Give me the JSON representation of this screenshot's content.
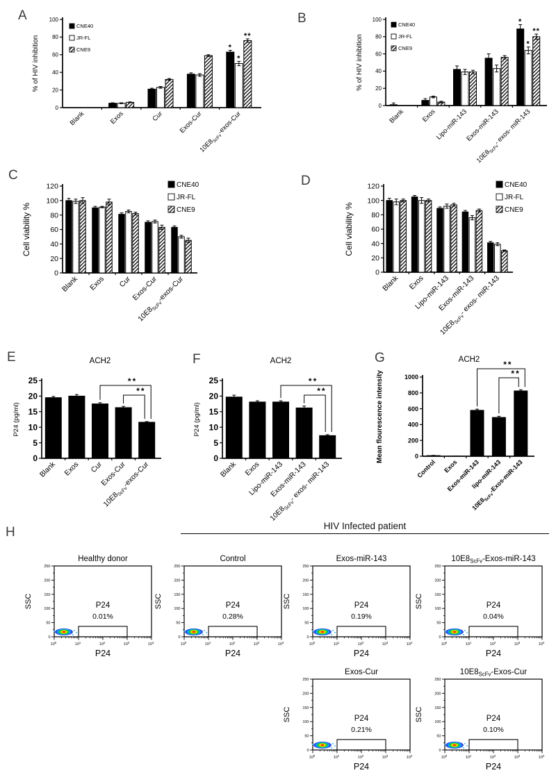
{
  "panel_letters": {
    "A": "A",
    "B": "B",
    "C": "C",
    "D": "D",
    "E": "E",
    "F": "F",
    "G": "G",
    "H": "H"
  },
  "panel_h": {
    "header": "HIV Infected patient"
  },
  "chart_data": [
    {
      "id": "A",
      "panel": "A",
      "type": "bar",
      "title": "",
      "ylabel": "% of HIV inhibition",
      "ylim": [
        0,
        100
      ],
      "ytick_step": 20,
      "legend_position": "inside-top-left",
      "categories": [
        "Blank",
        "Exos",
        "Cur",
        "Exos-Cur",
        [
          "10E8",
          {
            "sub": "ScFv"
          },
          "-exos-Cur"
        ]
      ],
      "series": [
        {
          "name": "CNE40",
          "style": "solid",
          "values": [
            0,
            5,
            21,
            38,
            63
          ],
          "err": [
            0,
            0.5,
            1,
            1.5,
            2
          ]
        },
        {
          "name": "JR-FL",
          "style": "open",
          "values": [
            0,
            5,
            23,
            37,
            50
          ],
          "err": [
            0,
            0.5,
            1,
            1.5,
            2.5
          ]
        },
        {
          "name": "CNE9",
          "style": "hatch",
          "values": [
            0,
            6,
            32,
            59,
            76
          ],
          "err": [
            0,
            0.5,
            1,
            1,
            2
          ]
        }
      ],
      "marks": [
        {
          "cat": 4,
          "series": 0,
          "text": "*"
        },
        {
          "cat": 4,
          "series": 1,
          "text": "*"
        },
        {
          "cat": 4,
          "series": 2,
          "text": "**"
        }
      ]
    },
    {
      "id": "B",
      "panel": "B",
      "type": "bar",
      "title": "",
      "ylabel": "% of HIV inhibition",
      "ylim": [
        0,
        100
      ],
      "ytick_step": 20,
      "legend_position": "inside-top-left",
      "categories": [
        "Blank",
        "Exos",
        "Lipo-miR-143",
        "Exos-miR-143",
        [
          "10E8",
          {
            "sub": "ScFv"
          },
          "- exos- miR-143"
        ]
      ],
      "series": [
        {
          "name": "CNE40",
          "style": "solid",
          "values": [
            1,
            6,
            42,
            55,
            89
          ],
          "err": [
            2,
            2,
            4,
            5,
            5
          ]
        },
        {
          "name": "JR-FL",
          "style": "open",
          "values": [
            0,
            10,
            39,
            43,
            64
          ],
          "err": [
            0,
            1,
            3,
            4,
            4
          ]
        },
        {
          "name": "CNE9",
          "style": "hatch",
          "values": [
            0,
            4,
            39,
            56,
            80
          ],
          "err": [
            0,
            1,
            2,
            2,
            3
          ]
        }
      ],
      "marks": [
        {
          "cat": 4,
          "series": 0,
          "text": "*"
        },
        {
          "cat": 4,
          "series": 1,
          "text": "*"
        },
        {
          "cat": 4,
          "series": 2,
          "text": "**"
        }
      ]
    },
    {
      "id": "C",
      "panel": "C",
      "type": "bar",
      "title": "",
      "ylabel": "Cell viability %",
      "ylim": [
        0,
        120
      ],
      "ytick_step": 20,
      "legend_position": "top-right",
      "categories": [
        "Blank",
        "Exos",
        "Cur",
        "Exos-Cur",
        [
          "10E8",
          {
            "sub": "ScFv"
          },
          "-exos-Cur"
        ]
      ],
      "series": [
        {
          "name": "CNE40",
          "style": "solid",
          "values": [
            100,
            90,
            81,
            70,
            63
          ],
          "err": [
            3,
            2,
            2,
            2,
            2
          ]
        },
        {
          "name": "JR-FL",
          "style": "open",
          "values": [
            99,
            91,
            85,
            71,
            50
          ],
          "err": [
            3,
            1,
            2,
            2,
            2
          ]
        },
        {
          "name": "CNE9",
          "style": "hatch",
          "values": [
            100,
            98,
            82,
            63,
            45
          ],
          "err": [
            4,
            4,
            2,
            3,
            3
          ]
        }
      ],
      "marks": []
    },
    {
      "id": "D",
      "panel": "D",
      "type": "bar",
      "title": "",
      "ylabel": "Cell viability %",
      "ylim": [
        0,
        120
      ],
      "ytick_step": 20,
      "legend_position": "top-right",
      "categories": [
        "Blank",
        "Exos",
        "Lipo-miR-143",
        "Exos-miR-143",
        [
          "10E8",
          {
            "sub": "ScFv"
          },
          "- exos- miR-143"
        ]
      ],
      "series": [
        {
          "name": "CNE40",
          "style": "solid",
          "values": [
            100,
            105,
            89,
            84,
            41
          ],
          "err": [
            3,
            2,
            2,
            2,
            2
          ]
        },
        {
          "name": "JR-FL",
          "style": "open",
          "values": [
            98,
            100,
            92,
            76,
            39
          ],
          "err": [
            4,
            4,
            3,
            3,
            2
          ]
        },
        {
          "name": "CNE9",
          "style": "hatch",
          "values": [
            100,
            100,
            94,
            86,
            30
          ],
          "err": [
            2,
            2,
            2,
            2,
            1
          ]
        }
      ],
      "marks": []
    },
    {
      "id": "E",
      "panel": "E",
      "type": "bar",
      "title": "ACH2",
      "ylabel": "P24  (pg/ml)",
      "ylim": [
        0,
        25
      ],
      "ytick_step": 5,
      "categories": [
        "Blank",
        "Exos",
        "Cur",
        "Exos-Cur",
        [
          "10E8",
          {
            "sub": "ScFv"
          },
          "-exos-Cur"
        ]
      ],
      "series": [
        {
          "name": "",
          "style": "solid",
          "values": [
            19.5,
            20,
            17.5,
            16.3,
            11.6
          ],
          "err": [
            0.4,
            0.5,
            0.4,
            0.4,
            0.2
          ]
        }
      ],
      "sig": [
        {
          "from": 2,
          "to": 4,
          "label": "**"
        },
        {
          "from": 3,
          "to": 4,
          "label": "**"
        }
      ]
    },
    {
      "id": "F",
      "panel": "F",
      "type": "bar",
      "title": "ACH2",
      "ylabel": "P24  (pg/ml)",
      "ylim": [
        0,
        25
      ],
      "ytick_step": 5,
      "categories": [
        "Blank",
        "Exos",
        "Lipo-miR-143",
        "Exos-miR-143",
        [
          "10E8",
          {
            "sub": "ScFv"
          },
          "- exos- miR-143"
        ]
      ],
      "series": [
        {
          "name": "",
          "style": "solid",
          "values": [
            19.7,
            18.1,
            18.1,
            16.2,
            7.3
          ],
          "err": [
            0.6,
            0.4,
            0.4,
            0.6,
            0.3
          ]
        }
      ],
      "sig": [
        {
          "from": 2,
          "to": 4,
          "label": "**"
        },
        {
          "from": 3,
          "to": 4,
          "label": "**"
        }
      ]
    },
    {
      "id": "G",
      "panel": "G",
      "type": "bar",
      "title": "ACH2",
      "ylabel": "Mean flourescence intensity",
      "ylim": [
        0,
        1000
      ],
      "ytick_step": 200,
      "categories": [
        "Control",
        "Exos",
        "Exos-miR-143",
        "lipo-miR-143",
        [
          "10E8",
          {
            "sub": "ScFv"
          },
          "-Exos-miR-143"
        ]
      ],
      "series": [
        {
          "name": "",
          "style": "solid",
          "values": [
            8,
            2,
            580,
            490,
            825
          ],
          "err": [
            3,
            1,
            15,
            15,
            15
          ]
        }
      ],
      "sig": [
        {
          "from": 2,
          "to": 4,
          "label": "**"
        },
        {
          "from": 3,
          "to": 4,
          "label": "**"
        }
      ]
    },
    {
      "id": "H1",
      "panel": "H",
      "type": "scatter",
      "subtype": "flow",
      "title": "Healthy donor",
      "xlabel": "P24",
      "ylabel": "SSC",
      "ylim": [
        0,
        250
      ],
      "yticks": [
        0,
        50,
        100,
        150,
        200,
        250
      ],
      "x_log_decades": [
        0,
        4
      ],
      "gate": {
        "label": "P24",
        "value": "0.01%"
      }
    },
    {
      "id": "H2",
      "panel": "H",
      "type": "scatter",
      "subtype": "flow",
      "title": "Control",
      "xlabel": "P24",
      "ylabel": "SSC",
      "ylim": [
        0,
        250
      ],
      "yticks": [
        0,
        50,
        100,
        150,
        200,
        250
      ],
      "x_log_decades": [
        0,
        4
      ],
      "gate": {
        "label": "P24",
        "value": "0.28%"
      }
    },
    {
      "id": "H3",
      "panel": "H",
      "type": "scatter",
      "subtype": "flow",
      "title": "Exos-miR-143",
      "xlabel": "P24",
      "ylabel": "SSC",
      "ylim": [
        0,
        250
      ],
      "yticks": [
        0,
        50,
        100,
        150,
        200,
        250
      ],
      "x_log_decades": [
        0,
        4
      ],
      "gate": {
        "label": "P24",
        "value": "0.19%"
      }
    },
    {
      "id": "H4",
      "panel": "H",
      "type": "scatter",
      "subtype": "flow",
      "title": [
        "10E8",
        {
          "sub": "ScFv"
        },
        "-Exos-miR-143"
      ],
      "xlabel": "P24",
      "ylabel": "SSC",
      "ylim": [
        0,
        250
      ],
      "yticks": [
        0,
        50,
        100,
        150,
        200,
        250
      ],
      "x_log_decades": [
        0,
        4
      ],
      "gate": {
        "label": "P24",
        "value": "0.04%"
      }
    },
    {
      "id": "H5",
      "panel": "H",
      "type": "scatter",
      "subtype": "flow",
      "title": "Exos-Cur",
      "xlabel": "P24",
      "ylabel": "SSC",
      "ylim": [
        0,
        250
      ],
      "yticks": [
        0,
        50,
        100,
        150,
        200,
        250
      ],
      "x_log_decades": [
        0,
        4
      ],
      "gate": {
        "label": "P24",
        "value": "0.21%"
      }
    },
    {
      "id": "H6",
      "panel": "H",
      "type": "scatter",
      "subtype": "flow",
      "title": [
        "10E8",
        {
          "sub": "ScFv"
        },
        "-Exos-Cur"
      ],
      "xlabel": "P24",
      "ylabel": "SSC",
      "ylim": [
        0,
        250
      ],
      "yticks": [
        0,
        50,
        100,
        150,
        200,
        250
      ],
      "x_log_decades": [
        0,
        4
      ],
      "gate": {
        "label": "P24",
        "value": "0.10%"
      }
    }
  ],
  "flow_colors": {
    "c1": "#2b50e8",
    "c2": "#0aa8f0",
    "c3": "#19c832",
    "c4": "#f5e900",
    "c5": "#f03000"
  }
}
